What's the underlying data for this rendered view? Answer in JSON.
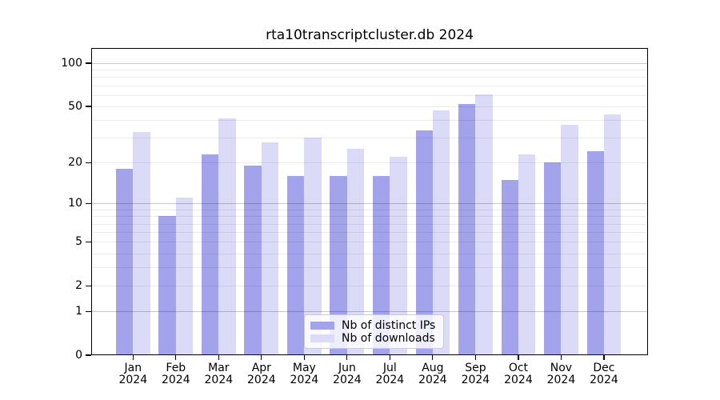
{
  "chart_data": {
    "type": "bar",
    "title": "rta10transcriptcluster.db 2024",
    "categories": [
      "Jan",
      "Feb",
      "Mar",
      "Apr",
      "May",
      "Jun",
      "Jul",
      "Aug",
      "Sep",
      "Oct",
      "Nov",
      "Dec"
    ],
    "category_year": "2024",
    "series": [
      {
        "name": "Nb of distinct IPs",
        "color": "#a3a3ec",
        "values": [
          18,
          8,
          23,
          19,
          16,
          16,
          16,
          34,
          52,
          15,
          20,
          24
        ]
      },
      {
        "name": "Nb of downloads",
        "color": "#dbdbf7",
        "values": [
          33,
          11,
          41,
          28,
          30,
          25,
          22,
          47,
          61,
          23,
          37,
          44
        ]
      }
    ],
    "y_axis": {
      "scale": "log10(value+1)",
      "tick_labels": [
        100,
        50,
        20,
        10,
        5,
        2,
        1,
        0
      ],
      "minor_gridlines": [
        2,
        3,
        4,
        5,
        6,
        7,
        8,
        9,
        20,
        30,
        40,
        50,
        60,
        70,
        80,
        90
      ],
      "major_gridlines": [
        1,
        10,
        100
      ],
      "range": [
        0,
        127.5
      ]
    },
    "x_axis": {
      "label_lines": 2
    },
    "legend": {
      "position": "bottom-center",
      "entries": [
        "Nb of distinct IPs",
        "Nb of downloads"
      ]
    },
    "colors": {
      "background": "#ffffff",
      "frame": "#000000",
      "minor_grid": "rgba(0,0,0,0.08)",
      "major_grid": "rgba(0,0,0,0.21)",
      "text": "#000000"
    }
  }
}
